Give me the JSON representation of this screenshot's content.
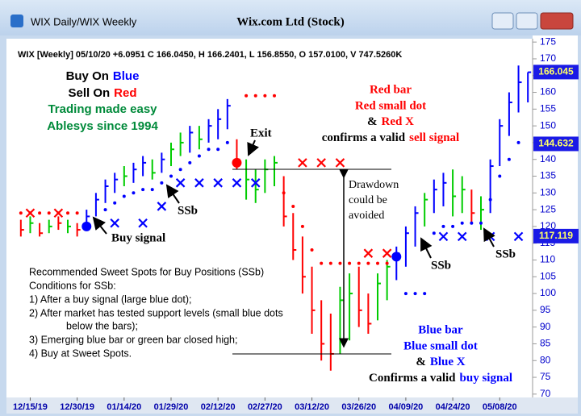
{
  "window": {
    "title": "WIX Daily/WIX Weekly",
    "stock": "Wix.com Ltd (Stock)"
  },
  "chart_data": {
    "type": "ohlc",
    "info": "WIX [Weekly] 05/10/20 +6.0951 C 166.0450, H 166.2401, L 156.8550, O 157.0100, V 747.5260K",
    "categories": [
      null,
      "12/15/19",
      null,
      null,
      null,
      null,
      "12/30/19",
      null,
      null,
      null,
      null,
      "01/14/20",
      null,
      null,
      null,
      null,
      "01/29/20",
      null,
      null,
      null,
      null,
      "02/12/20",
      null,
      null,
      null,
      null,
      "02/27/20",
      null,
      null,
      null,
      null,
      "03/12/20",
      null,
      null,
      null,
      null,
      "03/26/20",
      null,
      null,
      null,
      null,
      "04/09/20",
      null,
      null,
      null,
      null,
      "04/24/20",
      null,
      null,
      null,
      null,
      "05/08/20",
      null,
      null,
      null
    ],
    "high": [
      122,
      123,
      121,
      122,
      123,
      122,
      121,
      125,
      130,
      134,
      136,
      138,
      139,
      141,
      140,
      142,
      145,
      148,
      150,
      150,
      152,
      155,
      158,
      146,
      140,
      137,
      140,
      141,
      135,
      124,
      117,
      108,
      98,
      94,
      102,
      106,
      108,
      100,
      106,
      110,
      114,
      120,
      126,
      130,
      134,
      136,
      137,
      135,
      131,
      129,
      140,
      152,
      160,
      168,
      166
    ],
    "low": [
      117,
      118,
      117,
      118,
      119,
      118,
      117,
      119,
      123,
      127,
      130,
      132,
      133,
      135,
      134,
      136,
      138,
      141,
      142,
      143,
      145,
      146,
      149,
      137,
      128,
      127,
      130,
      132,
      120,
      110,
      100,
      88,
      80,
      77,
      82,
      86,
      90,
      88,
      92,
      98,
      104,
      108,
      114,
      120,
      124,
      126,
      123,
      124,
      121,
      119,
      124,
      138,
      147,
      154,
      157
    ],
    "close": [
      119,
      121,
      118,
      120,
      121,
      120,
      119,
      123,
      128,
      132,
      134,
      135,
      137,
      139,
      136,
      140,
      143,
      145,
      148,
      146,
      150,
      152,
      156,
      140,
      134,
      131,
      137,
      139,
      123,
      113,
      105,
      95,
      85,
      82,
      98,
      100,
      95,
      91,
      103,
      108,
      112,
      118,
      124,
      128,
      131,
      133,
      129,
      131,
      124,
      125,
      138,
      150,
      157,
      163,
      166
    ],
    "colors": [
      "#ff0000",
      "#00cc00",
      "#ff0000",
      "#00cc00",
      "#ff0000",
      "#00cc00",
      "#ff0000",
      "#0000ff",
      "#0000ff",
      "#0000ff",
      "#0000ff",
      "#00cc00",
      "#0000ff",
      "#0000ff",
      "#00cc00",
      "#0000ff",
      "#00cc00",
      "#00cc00",
      "#0000ff",
      "#00cc00",
      "#0000ff",
      "#0000ff",
      "#0000ff",
      "#ff0000",
      "#00cc00",
      "#00cc00",
      "#00cc00",
      "#00cc00",
      "#ff0000",
      "#ff0000",
      "#ff0000",
      "#ff0000",
      "#ff0000",
      "#ff0000",
      "#00cc00",
      "#00cc00",
      "#ff0000",
      "#ff0000",
      "#00cc00",
      "#00cc00",
      "#0000ff",
      "#0000ff",
      "#0000ff",
      "#00cc00",
      "#0000ff",
      "#0000ff",
      "#00cc00",
      "#00cc00",
      "#ff0000",
      "#00cc00",
      "#0000ff",
      "#0000ff",
      "#0000ff",
      "#0000ff",
      "#0000ff"
    ],
    "sell_dots": [
      124,
      124,
      124,
      124,
      124,
      124,
      124,
      null,
      null,
      null,
      null,
      null,
      null,
      null,
      null,
      null,
      null,
      null,
      null,
      null,
      null,
      null,
      null,
      null,
      159,
      159,
      159,
      159,
      130,
      126,
      120,
      113,
      109,
      109,
      109,
      109,
      109,
      109,
      109,
      109,
      null,
      null,
      null,
      null,
      null,
      null,
      null,
      null,
      null,
      null,
      null,
      null,
      null,
      null,
      null
    ],
    "buy_dots": [
      null,
      null,
      null,
      null,
      null,
      null,
      null,
      null,
      null,
      125,
      127,
      129,
      130,
      131,
      131,
      133,
      135,
      137,
      139,
      141,
      143,
      143,
      145,
      null,
      null,
      null,
      null,
      null,
      null,
      null,
      null,
      null,
      null,
      null,
      null,
      null,
      null,
      null,
      null,
      null,
      null,
      100,
      100,
      100,
      118,
      120,
      120,
      121,
      121,
      121,
      128,
      135,
      140,
      145,
      null
    ],
    "sell_x": [
      null,
      124,
      null,
      null,
      124,
      null,
      null,
      null,
      null,
      null,
      null,
      null,
      null,
      null,
      null,
      null,
      null,
      null,
      null,
      null,
      null,
      null,
      null,
      null,
      null,
      null,
      null,
      null,
      null,
      null,
      139,
      null,
      139,
      null,
      139,
      null,
      null,
      112,
      null,
      112,
      null,
      null,
      null,
      null,
      null,
      null,
      null,
      null,
      null,
      null,
      null,
      null,
      null,
      null,
      null
    ],
    "buy_x": [
      null,
      null,
      null,
      null,
      null,
      null,
      null,
      null,
      null,
      null,
      121,
      null,
      null,
      121,
      null,
      126,
      null,
      133,
      null,
      133,
      null,
      133,
      null,
      133,
      null,
      133,
      null,
      null,
      null,
      null,
      null,
      null,
      null,
      null,
      null,
      null,
      null,
      null,
      null,
      null,
      null,
      null,
      null,
      null,
      null,
      117,
      null,
      117,
      null,
      null,
      117,
      null,
      null,
      117,
      null
    ],
    "buy_signal": [
      null,
      null,
      null,
      null,
      null,
      null,
      null,
      120,
      null,
      null,
      null,
      null,
      null,
      null,
      null,
      null,
      null,
      null,
      null,
      null,
      null,
      null,
      null,
      null,
      null,
      null,
      null,
      null,
      null,
      null,
      null,
      null,
      null,
      null,
      null,
      null,
      null,
      null,
      null,
      null,
      111,
      null,
      null,
      null,
      null,
      null,
      null,
      null,
      null,
      null,
      null,
      null,
      null,
      null,
      null
    ],
    "sell_signal": [
      null,
      null,
      null,
      null,
      null,
      null,
      null,
      null,
      null,
      null,
      null,
      null,
      null,
      null,
      null,
      null,
      null,
      null,
      null,
      null,
      null,
      null,
      null,
      139,
      null,
      null,
      null,
      null,
      null,
      null,
      null,
      null,
      null,
      null,
      null,
      null,
      null,
      null,
      null,
      null,
      null,
      null,
      null,
      null,
      null,
      null,
      null,
      null,
      null,
      null,
      null,
      null,
      null,
      null,
      null
    ],
    "price_labels": [
      166.045,
      144.632,
      117.119
    ],
    "ylim": [
      69,
      176
    ],
    "yticks": [
      70,
      75,
      80,
      85,
      90,
      95,
      100,
      105,
      110,
      115,
      120,
      125,
      130,
      135,
      140,
      145,
      150,
      155,
      160,
      165,
      170,
      175
    ],
    "annotations": {
      "buy_on": [
        "Buy On",
        "Blue"
      ],
      "sell_on": [
        "Sell On",
        "Red"
      ],
      "tagline": [
        "Trading made easy",
        "Ablesys since 1994"
      ],
      "sell_rule": [
        "Red bar",
        "Red small dot",
        "&",
        "Red X",
        "confirms a valid",
        "sell signal"
      ],
      "buy_rule": [
        "Blue bar",
        "Blue small dot",
        "&",
        "Blue X",
        "Confirms a valid",
        "buy signal"
      ],
      "exit": "Exit",
      "buy_signal": "Buy signal",
      "ssb": [
        "SSb",
        "SSb",
        "SSb"
      ],
      "drawdown": [
        "Drawdown",
        "could be",
        "avoided"
      ],
      "notes": [
        "Recommended Sweet Spots for Buy Positions (SSb)",
        "Conditions for SSb:",
        "1) After a buy signal (large blue dot);",
        "2) After market has tested support levels (small blue dots",
        "below the bars);",
        "3) Emerging blue bar or green bar closed high;",
        "4) Buy at Sweet Spots."
      ]
    }
  }
}
